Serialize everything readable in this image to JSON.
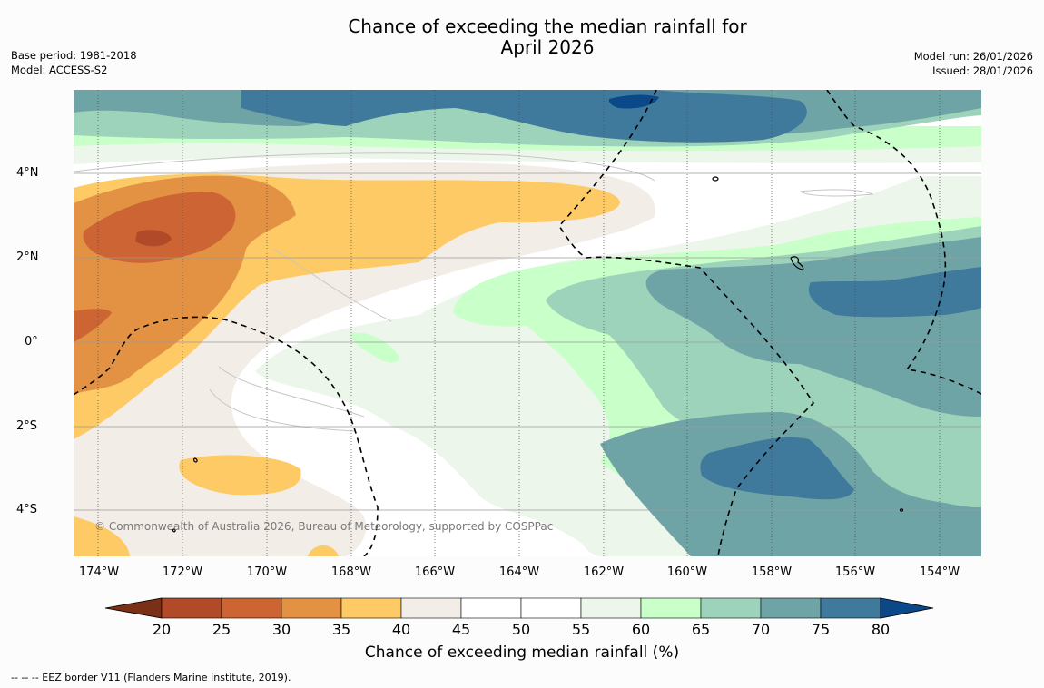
{
  "title_line1": "Chance of exceeding the median rainfall for",
  "title_line2": "April 2026",
  "base_period": "Base period: 1981-2018",
  "model": "Model: ACCESS-S2",
  "model_run": "Model run: 26/01/2026",
  "issued": "Issued: 28/01/2026",
  "copyright": "© Commonwealth of Australia 2026, Bureau of Meteorology, supported by COSPPac",
  "eez_note": "--  --  -- EEZ border V11 (Flanders Marine Institute, 2019).",
  "lat_labels": [
    "4°N",
    "2°N",
    "0°",
    "2°S",
    "4°S"
  ],
  "lon_labels": [
    "174°W",
    "172°W",
    "170°W",
    "168°W",
    "166°W",
    "164°W",
    "162°W",
    "160°W",
    "158°W",
    "156°W",
    "154°W"
  ],
  "colorbar": {
    "label": "Chance of exceeding median rainfall (%)",
    "ticks": [
      "20",
      "25",
      "30",
      "35",
      "40",
      "45",
      "50",
      "55",
      "60",
      "65",
      "70",
      "75",
      "80"
    ],
    "colors": [
      "#7a3017",
      "#b04a28",
      "#cd6433",
      "#e39244",
      "#fdca66",
      "#f3ede8",
      "#ffffff",
      "#ffffff",
      "#ecf6ea",
      "#c9ffc8",
      "#9dd3ba",
      "#6fa4a6",
      "#3f7a9c",
      "#0a4889"
    ]
  }
}
